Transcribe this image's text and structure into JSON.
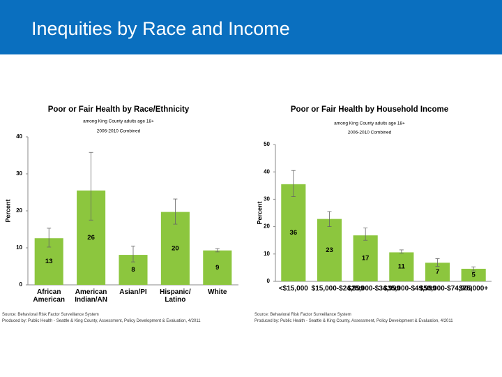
{
  "header": {
    "title": "Inequities by Race and Income"
  },
  "chart_data": [
    {
      "type": "bar",
      "title": "Poor or Fair Health by Race/Ethnicity",
      "subtitle": [
        "among King County adults age 18+",
        "2006-2010 Combined"
      ],
      "y_label": "Percent",
      "categories": [
        "African American",
        "American Indian/AN",
        "Asian/PI",
        "Hispanic/ Latino",
        "White"
      ],
      "values": [
        12.6,
        25.5,
        8.1,
        19.7,
        9.3
      ],
      "value_labels": [
        "13",
        "26",
        "8",
        "20",
        "9"
      ],
      "ci_low": [
        10.2,
        17.5,
        6.2,
        16.4,
        8.9
      ],
      "ci_high": [
        15.3,
        35.8,
        10.5,
        23.2,
        9.8
      ],
      "color": "#8cc63e",
      "ylim": [
        0,
        40
      ],
      "yticks": [
        0,
        10,
        20,
        30,
        40
      ],
      "source": "Source: Behavioral Risk Factor Surveillance System",
      "produced_by": "Produced by: Public Health - Seattle & King County, Assessment, Policy Development & Evaluation, 4/2011"
    },
    {
      "type": "bar",
      "title": "Poor or Fair Health by Household Income",
      "subtitle": [
        "among King County adults age 18+",
        "2006-2010 Combined"
      ],
      "y_label": "Percent",
      "categories": [
        "<$15,000",
        "$15,000-$24,999",
        "$25,000-$34,999",
        "$35,000-$49,999",
        "$50,000-$74,999",
        "$75,000+"
      ],
      "values": [
        35.5,
        22.8,
        16.8,
        10.6,
        6.8,
        4.6
      ],
      "value_labels": [
        "36",
        "23",
        "17",
        "11",
        "7",
        "5"
      ],
      "ci_low": [
        31.0,
        20.0,
        15.0,
        10.3,
        5.5,
        3.8
      ],
      "ci_high": [
        40.5,
        25.5,
        19.5,
        11.5,
        8.3,
        5.3
      ],
      "color": "#8cc63e",
      "ylim": [
        0,
        50
      ],
      "yticks": [
        0,
        10,
        20,
        30,
        40,
        50
      ],
      "source": "Source: Behavioral Risk Factor Surveillance System",
      "produced_by": "Produced by: Public Health - Seattle & King County, Assessment, Policy Development & Evaluation, 4/2011"
    }
  ]
}
